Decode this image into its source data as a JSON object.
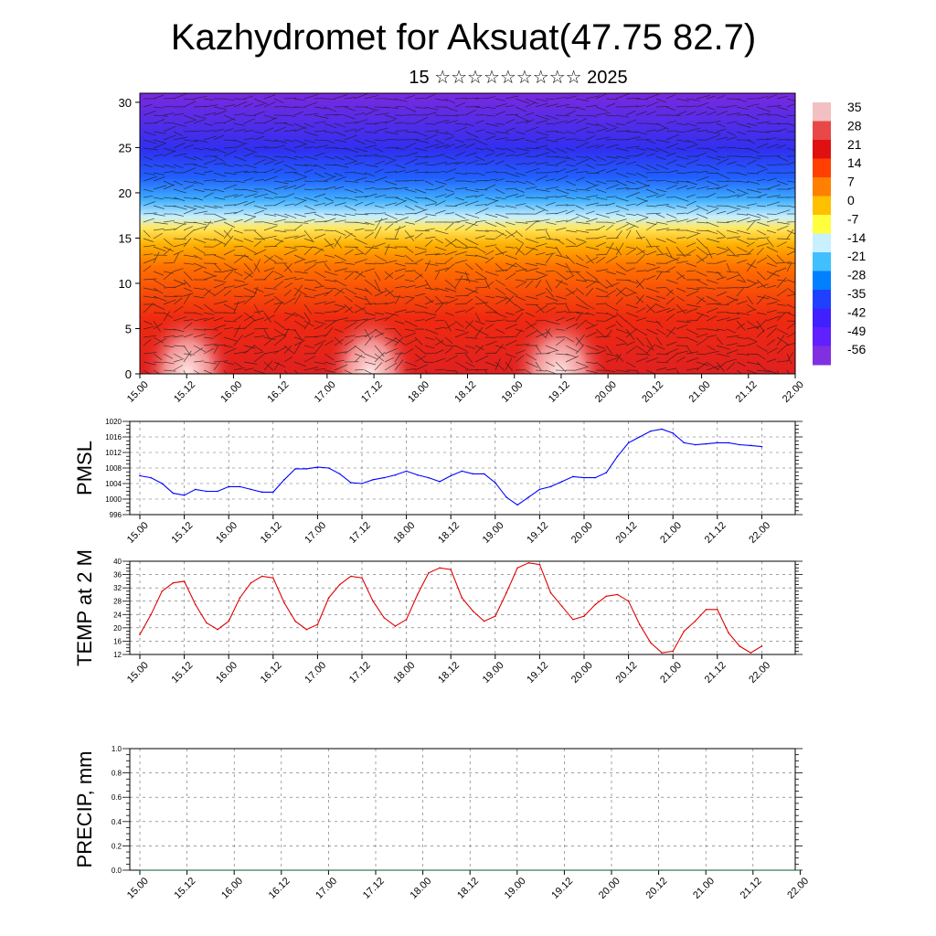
{
  "title": "Kazhydromet for Aksuat(47.75 82.7)",
  "subtitle": "15 ☆☆☆☆☆☆☆☆☆ 2025",
  "time_ticks": [
    "15.00",
    "15.12",
    "16.00",
    "16.12",
    "17.00",
    "17.12",
    "18.00",
    "18.12",
    "19.00",
    "19.12",
    "20.00",
    "20.12",
    "21.00",
    "21.12",
    "22.00"
  ],
  "chart_data": [
    {
      "type": "heatmap",
      "name": "cross-section",
      "ylim": [
        0,
        31
      ],
      "yticks": [
        0,
        5,
        10,
        15,
        20,
        25,
        30
      ],
      "xticks": [
        "15.00",
        "15.12",
        "16.00",
        "16.12",
        "17.00",
        "17.12",
        "18.00",
        "18.12",
        "19.00",
        "19.12",
        "20.00",
        "20.12",
        "21.00",
        "21.12",
        "22.00"
      ],
      "colorbar": {
        "labels": [
          "35",
          "28",
          "21",
          "14",
          "7",
          "0",
          "-7",
          "-14",
          "-21",
          "-28",
          "-35",
          "-42",
          "-49",
          "-56"
        ],
        "colors": [
          "#f2c0c0",
          "#e84848",
          "#e01010",
          "#ff4000",
          "#ff8000",
          "#ffc000",
          "#ffff40",
          "#c8f0ff",
          "#40c0ff",
          "#0080ff",
          "#2040ff",
          "#4020ff",
          "#6020ff",
          "#8030e0"
        ]
      }
    },
    {
      "type": "line",
      "ylabel": "PMSL",
      "ylim": [
        996,
        1020
      ],
      "yticks": [
        996,
        1000,
        1004,
        1008,
        1012,
        1016,
        1020
      ],
      "color": "#0000ff",
      "x": [
        0,
        3,
        6,
        9,
        12,
        15,
        18,
        21,
        24,
        27,
        30,
        33,
        36,
        39,
        42,
        45,
        48,
        51,
        54,
        57,
        60,
        63,
        66,
        69,
        72,
        75,
        78,
        81,
        84,
        87,
        90,
        93,
        96,
        99,
        102,
        105,
        108,
        111,
        114,
        117,
        120,
        123,
        126,
        129,
        132,
        135,
        138,
        141,
        144,
        147,
        150,
        153,
        156,
        159,
        162,
        165,
        168
      ],
      "values": [
        1006,
        1005.5,
        1004,
        1001.5,
        1001,
        1002.5,
        1002,
        1002,
        1003.2,
        1003.2,
        1002.5,
        1001.8,
        1001.8,
        1005,
        1007.8,
        1007.8,
        1008.2,
        1008,
        1006.5,
        1004.2,
        1004,
        1005,
        1005.5,
        1006.2,
        1007.2,
        1006.2,
        1005.5,
        1004.5,
        1006,
        1007.2,
        1006.5,
        1006.5,
        1004.2,
        1000.5,
        998.5,
        1000.5,
        1002.5,
        1003.2,
        1004.5,
        1005.8,
        1005.5,
        1005.5,
        1006.8,
        1011,
        1014.5,
        1016,
        1017.5,
        1018,
        1017,
        1014.5,
        1014,
        1014.2,
        1014.5,
        1014.5,
        1014,
        1013.8,
        1013.5
      ]
    },
    {
      "type": "line",
      "ylabel": "TEMP at 2 M",
      "ylim": [
        12,
        40
      ],
      "yticks": [
        12,
        16,
        20,
        24,
        28,
        32,
        36,
        40
      ],
      "color": "#e00000",
      "x": [
        0,
        3,
        6,
        9,
        12,
        15,
        18,
        21,
        24,
        27,
        30,
        33,
        36,
        39,
        42,
        45,
        48,
        51,
        54,
        57,
        60,
        63,
        66,
        69,
        72,
        75,
        78,
        81,
        84,
        87,
        90,
        93,
        96,
        99,
        102,
        105,
        108,
        111,
        114,
        117,
        120,
        123,
        126,
        129,
        132,
        135,
        138,
        141,
        144,
        147,
        150,
        153,
        156,
        159,
        162,
        165,
        168
      ],
      "values": [
        18,
        24,
        31,
        33.5,
        34,
        27,
        21.5,
        19.5,
        22,
        29,
        33.5,
        35.5,
        35,
        27.5,
        22,
        19.5,
        21,
        29,
        33,
        35.5,
        35,
        28,
        23,
        20.5,
        22.5,
        30,
        36.5,
        38,
        37.5,
        29,
        25,
        22,
        23.5,
        30.5,
        38,
        39.5,
        39,
        30.5,
        26.5,
        22.5,
        23.5,
        27,
        29.5,
        30,
        28,
        21,
        15.5,
        12.5,
        13,
        19,
        22,
        25.5,
        25.5,
        18.5,
        14.5,
        12.5,
        14.5
      ]
    },
    {
      "type": "line",
      "ylabel": "PRECIP, mm",
      "ylim": [
        0.0,
        1.0
      ],
      "yticks": [
        "0.0",
        "0.2",
        "0.4",
        "0.6",
        "0.8",
        "1.0"
      ],
      "color": "#0a5a2a",
      "x": [
        0,
        168
      ],
      "values": [
        0,
        0
      ]
    }
  ]
}
